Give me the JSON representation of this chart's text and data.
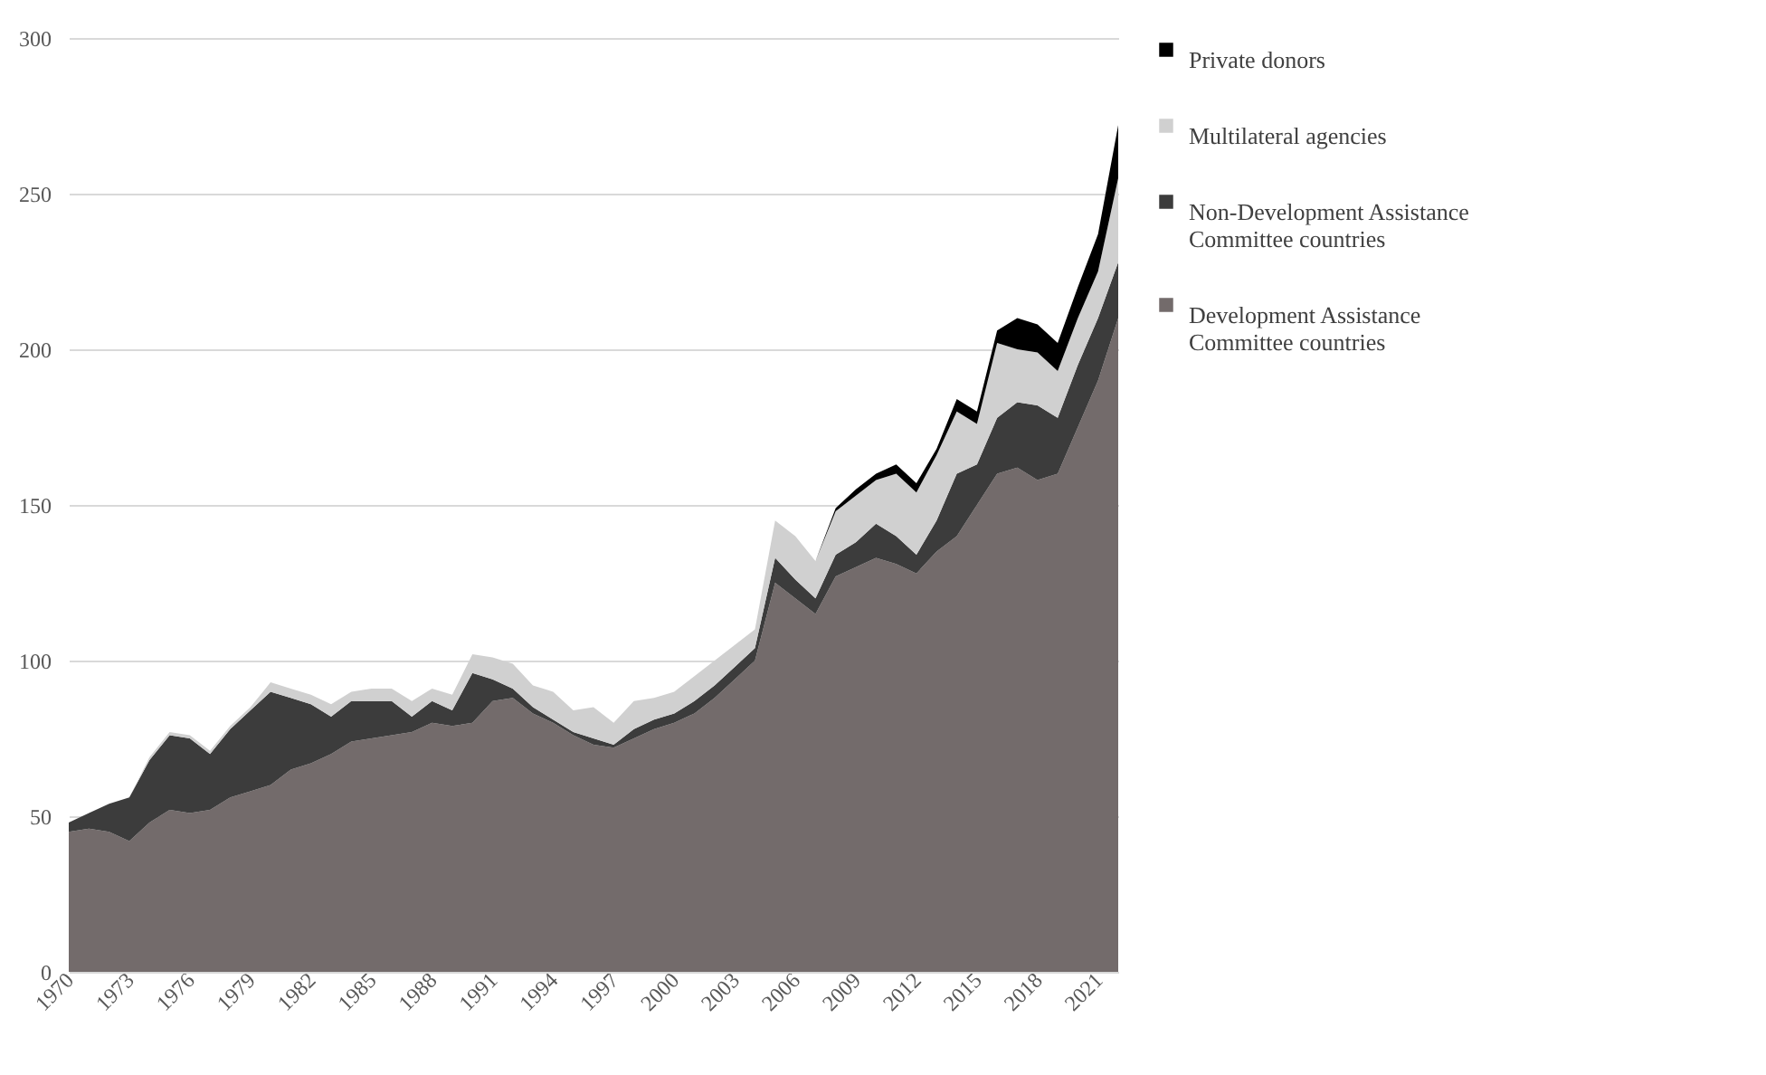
{
  "chart_data": {
    "type": "area",
    "stacked": true,
    "x": [
      1970,
      1971,
      1972,
      1973,
      1974,
      1975,
      1976,
      1977,
      1978,
      1979,
      1980,
      1981,
      1982,
      1983,
      1984,
      1985,
      1986,
      1987,
      1988,
      1989,
      1990,
      1991,
      1992,
      1993,
      1994,
      1995,
      1996,
      1997,
      1998,
      1999,
      2000,
      2001,
      2002,
      2003,
      2004,
      2005,
      2006,
      2007,
      2008,
      2009,
      2010,
      2011,
      2012,
      2013,
      2014,
      2015,
      2016,
      2017,
      2018,
      2019,
      2020,
      2021,
      2022
    ],
    "xlim": [
      1970,
      2022
    ],
    "xticks": [
      1970,
      1973,
      1976,
      1979,
      1982,
      1985,
      1988,
      1991,
      1994,
      1997,
      2000,
      2003,
      2006,
      2009,
      2012,
      2015,
      2018,
      2021
    ],
    "ylim": [
      0,
      300
    ],
    "yticks": [
      0,
      50,
      100,
      150,
      200,
      250,
      300
    ],
    "grid": "y",
    "legend": "right",
    "series": [
      {
        "name": "Development Assistance Committee countries",
        "color": "#736b6b",
        "values": [
          45,
          46,
          45,
          42,
          48,
          52,
          51,
          52,
          56,
          58,
          60,
          65,
          67,
          70,
          74,
          75,
          76,
          77,
          80,
          79,
          80,
          87,
          88,
          83,
          80,
          76,
          73,
          72,
          75,
          78,
          80,
          83,
          88,
          94,
          100,
          125,
          120,
          115,
          127,
          130,
          133,
          131,
          128,
          135,
          140,
          150,
          160,
          162,
          158,
          160,
          175,
          190,
          210
        ]
      },
      {
        "name": "Non-Development Assistance Committee countries",
        "color": "#3c3c3c",
        "values": [
          3,
          5,
          9,
          14,
          20,
          24,
          24,
          18,
          22,
          26,
          30,
          23,
          19,
          12,
          13,
          12,
          11,
          5,
          7,
          5,
          16,
          7,
          3,
          2,
          1,
          1,
          2,
          1,
          3,
          3,
          3,
          4,
          4,
          4,
          4,
          8,
          6,
          5,
          7,
          8,
          11,
          9,
          6,
          10,
          20,
          13,
          18,
          21,
          24,
          18,
          20,
          20,
          18
        ]
      },
      {
        "name": "Multilateral agencies",
        "color": "#d0d0d0",
        "values": [
          0,
          0,
          0,
          0,
          1,
          1,
          1,
          1,
          1,
          1,
          3,
          3,
          3,
          4,
          3,
          4,
          4,
          5,
          4,
          5,
          6,
          7,
          8,
          7,
          9,
          7,
          10,
          7,
          9,
          7,
          7,
          8,
          8,
          7,
          6,
          12,
          14,
          12,
          14,
          15,
          14,
          20,
          20,
          21,
          20,
          13,
          24,
          17,
          17,
          15,
          15,
          15,
          27
        ]
      },
      {
        "name": "Private donors",
        "color": "#000000",
        "values": [
          0,
          0,
          0,
          0,
          0,
          0,
          0,
          0,
          0,
          0,
          0,
          0,
          0,
          0,
          0,
          0,
          0,
          0,
          0,
          0,
          0,
          0,
          0,
          0,
          0,
          0,
          0,
          0,
          0,
          0,
          0,
          0,
          0,
          0,
          0,
          0,
          0,
          0,
          1,
          2,
          2,
          3,
          3,
          2,
          4,
          4,
          4,
          10,
          9,
          9,
          10,
          12,
          17
        ]
      }
    ]
  }
}
